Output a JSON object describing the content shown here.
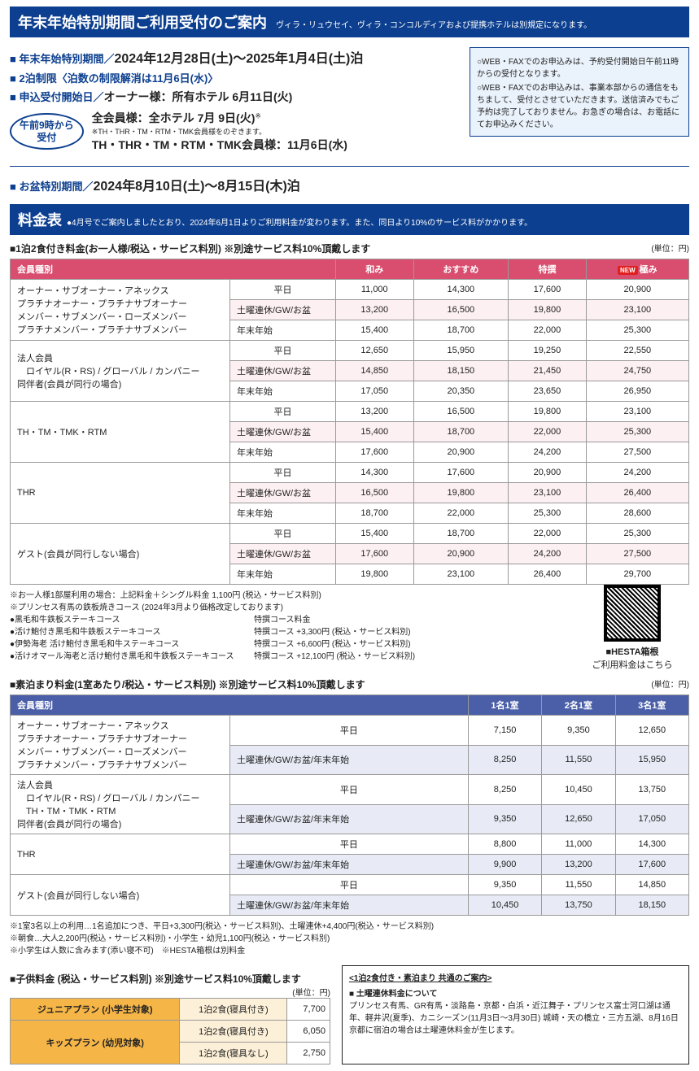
{
  "banner": {
    "title": "年末年始特別期間ご利用受付のご案内",
    "sub": "ヴィラ・リュウセイ、ヴィラ・コンコルディアおよび提携ホテルは別規定になります。"
  },
  "period": {
    "label": "■ 年末年始特別期間／",
    "dates": "2024年12月28日(土)～2025年1月4日(土)泊"
  },
  "limit": "■ 2泊制限〈泊数の制限解消は11月6日(水)〉",
  "apply": {
    "label": "■ 申込受付開始日／",
    "owner": "オーナー様：所有ホテル 6月11日(火)",
    "badge": "午前9時から\n受付",
    "all": "全会員様：全ホテル 7月 9日(火)",
    "all_note": "※TH・THR・TM・RTM・TMK会員様をのぞきます。",
    "th": "TH・THR・TM・RTM・TMK会員様：11月6日(水)"
  },
  "infobox": {
    "l1": "○WEB・FAXでのお申込みは、予約受付開始日午前11時からの受付となります。",
    "l2": "○WEB・FAXでのお申込みは、事業本部からの通信をもちまして、受付とさせていただきます。送信済みでもご予約は完了しておりません。お急ぎの場合は、お電話にてお申込みください。"
  },
  "obon": {
    "label": "■ お盆特別期間／",
    "dates": "2024年8月10日(土)～8月15日(木)泊"
  },
  "price_banner": {
    "title": "料金表",
    "note": "●4月号でご案内しましたとおり、2024年6月1日よりご利用料金が変わります。また、同日より10%のサービス料がかかります。"
  },
  "t1": {
    "title": "■1泊2食付き料金(お一人様/税込・サービス料別) ※別途サービス料10%頂戴します",
    "unit": "(単位：円)",
    "head": [
      "会員種別",
      "",
      "和み",
      "おすすめ",
      "特撰",
      "極み"
    ],
    "new": "NEW",
    "groups": [
      {
        "name": "オーナー・サブオーナー・アネックス\nプラチナオーナー・プラチナサブオーナー\nメンバー・サブメンバー・ローズメンバー\nプラチナメンバー・プラチナサブメンバー",
        "rows": [
          [
            "平日",
            "11,000",
            "14,300",
            "17,600",
            "20,900"
          ],
          [
            "土曜連休/GW/お盆",
            "13,200",
            "16,500",
            "19,800",
            "23,100"
          ],
          [
            "年末年始",
            "15,400",
            "18,700",
            "22,000",
            "25,300"
          ]
        ]
      },
      {
        "name": "法人会員\n　ロイヤル(R・RS) / グローバル / カンパニー\n同伴者(会員が同行の場合)",
        "rows": [
          [
            "平日",
            "12,650",
            "15,950",
            "19,250",
            "22,550"
          ],
          [
            "土曜連休/GW/お盆",
            "14,850",
            "18,150",
            "21,450",
            "24,750"
          ],
          [
            "年末年始",
            "17,050",
            "20,350",
            "23,650",
            "26,950"
          ]
        ]
      },
      {
        "name": "TH・TM・TMK・RTM",
        "rows": [
          [
            "平日",
            "13,200",
            "16,500",
            "19,800",
            "23,100"
          ],
          [
            "土曜連休/GW/お盆",
            "15,400",
            "18,700",
            "22,000",
            "25,300"
          ],
          [
            "年末年始",
            "17,600",
            "20,900",
            "24,200",
            "27,500"
          ]
        ]
      },
      {
        "name": "THR",
        "rows": [
          [
            "平日",
            "14,300",
            "17,600",
            "20,900",
            "24,200"
          ],
          [
            "土曜連休/GW/お盆",
            "16,500",
            "19,800",
            "23,100",
            "26,400"
          ],
          [
            "年末年始",
            "18,700",
            "22,000",
            "25,300",
            "28,600"
          ]
        ]
      },
      {
        "name": "ゲスト(会員が同行しない場合)",
        "rows": [
          [
            "平日",
            "15,400",
            "18,700",
            "22,000",
            "25,300"
          ],
          [
            "土曜連休/GW/お盆",
            "17,600",
            "20,900",
            "24,200",
            "27,500"
          ],
          [
            "年末年始",
            "19,800",
            "23,100",
            "26,400",
            "29,700"
          ]
        ]
      }
    ]
  },
  "t1_notes": {
    "l1": "※お一人様1部屋利用の場合：上記料金＋シングル料金 1,100円 (税込・サービス料別)",
    "l2": "※プリンセス有馬の鉄板焼きコース (2024年3月より価格改定しております)",
    "c1": "●黒毛和牛鉄板ステーキコース",
    "c1v": "特撰コース料金",
    "c2": "●活け鮑付き黒毛和牛鉄板ステーキコース",
    "c2v": "特撰コース  +3,300円 (税込・サービス料別)",
    "c3": "●伊勢海老 活け鮑付き黒毛和牛ステーキコース",
    "c3v": "特撰コース  +6,600円 (税込・サービス料別)",
    "c4": "●活けオマール海老と活け鮑付き黒毛和牛鉄板ステーキコース",
    "c4v": "特撰コース +12,100円 (税込・サービス料別)"
  },
  "qr": {
    "l1": "■HESTA箱根",
    "l2": "ご利用料金はこちら"
  },
  "t2": {
    "title": "■素泊まり料金(1室あたり/税込・サービス料別) ※別途サービス料10%頂戴します",
    "unit": "(単位：円)",
    "head": [
      "会員種別",
      "",
      "1名1室",
      "2名1室",
      "3名1室"
    ],
    "groups": [
      {
        "name": "オーナー・サブオーナー・アネックス\nプラチナオーナー・プラチナサブオーナー\nメンバー・サブメンバー・ローズメンバー\nプラチナメンバー・プラチナサブメンバー",
        "rows": [
          [
            "平日",
            "7,150",
            "9,350",
            "12,650"
          ],
          [
            "土曜連休/GW/お盆/年末年始",
            "8,250",
            "11,550",
            "15,950"
          ]
        ]
      },
      {
        "name": "法人会員\n　ロイヤル(R・RS) / グローバル / カンパニー\n　TH・TM・TMK・RTM\n同伴者(会員が同行の場合)",
        "rows": [
          [
            "平日",
            "8,250",
            "10,450",
            "13,750"
          ],
          [
            "土曜連休/GW/お盆/年末年始",
            "9,350",
            "12,650",
            "17,050"
          ]
        ]
      },
      {
        "name": "THR",
        "rows": [
          [
            "平日",
            "8,800",
            "11,000",
            "14,300"
          ],
          [
            "土曜連休/GW/お盆/年末年始",
            "9,900",
            "13,200",
            "17,600"
          ]
        ]
      },
      {
        "name": "ゲスト(会員が同行しない場合)",
        "rows": [
          [
            "平日",
            "9,350",
            "11,550",
            "14,850"
          ],
          [
            "土曜連休/GW/お盆/年末年始",
            "10,450",
            "13,750",
            "18,150"
          ]
        ]
      }
    ]
  },
  "t2_notes": {
    "l1": "※1室3名以上の利用…1名追加につき、平日+3,300円(税込・サービス料別)、土曜連休+4,400円(税込・サービス料別)",
    "l2": "※朝食…大人2,200円(税込・サービス料別)・小学生・幼児1,100円(税込・サービス料別)",
    "l3": "※小学生は人数に含みます(添い寝不可)　※HESTA箱根は別料金"
  },
  "t3": {
    "title": "■子供料金 (税込・サービス料別) ※別途サービス料10%頂戴します",
    "unit": "(単位：円)",
    "rows": [
      {
        "plan": "ジュニアプラン (小学生対象)",
        "items": [
          [
            "1泊2食(寝具付き)",
            "7,700"
          ]
        ]
      },
      {
        "plan": "キッズプラン (幼児対象)",
        "items": [
          [
            "1泊2食(寝具付き)",
            "6,050"
          ],
          [
            "1泊2食(寝具なし)",
            "2,750"
          ]
        ]
      }
    ]
  },
  "common": {
    "title": "<1泊2食付き・素泊まり 共通のご案内>",
    "h": "■ 土曜連休料金について",
    "body": "プリンセス有馬、GR有馬・淡路島・京都・白浜・近江舞子・プリンセス富士河口湖は通年、軽井沢(夏季)、カニシーズン(11月3日～3月30日) 城崎・天の橋立・三方五湖、8月16日京都に宿泊の場合は土曜連休料金が生じます。"
  }
}
